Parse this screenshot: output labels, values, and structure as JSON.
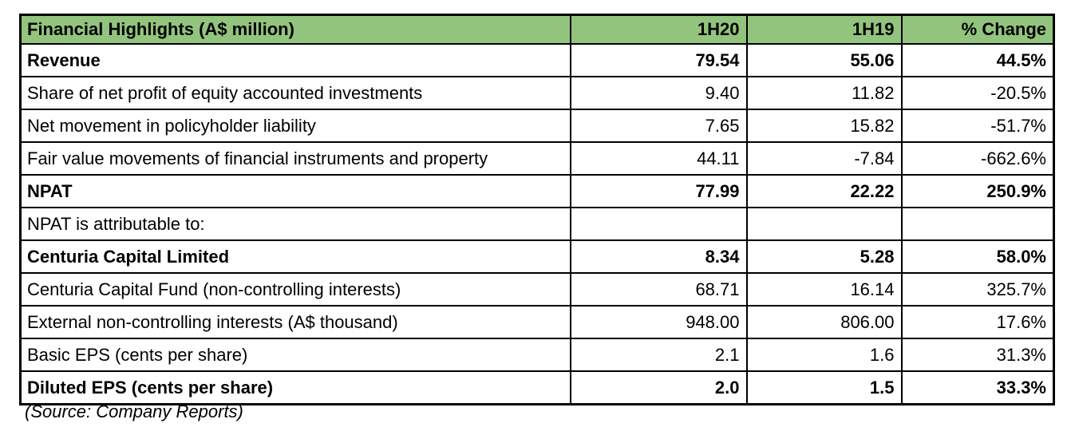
{
  "chart_data": {
    "type": "table",
    "title": "Financial Highlights (A$ million)",
    "columns": [
      "Financial Highlights (A$ million)",
      "1H20",
      "1H19",
      "% Change"
    ],
    "rows": [
      {
        "label": "Revenue",
        "values": [
          "79.54",
          "55.06",
          "44.5%"
        ],
        "bold": true
      },
      {
        "label": "Share of net profit of equity accounted investments",
        "values": [
          "9.40",
          "11.82",
          "-20.5%"
        ],
        "bold": false
      },
      {
        "label": "Net movement in policyholder liability",
        "values": [
          "7.65",
          "15.82",
          "-51.7%"
        ],
        "bold": false
      },
      {
        "label": "Fair value movements of financial instruments and property",
        "values": [
          "44.11",
          "-7.84",
          "-662.6%"
        ],
        "bold": false
      },
      {
        "label": "NPAT",
        "values": [
          "77.99",
          "22.22",
          "250.9%"
        ],
        "bold": true
      },
      {
        "label": "NPAT is attributable to:",
        "values": [
          "",
          "",
          ""
        ],
        "bold": false
      },
      {
        "label": "Centuria Capital Limited",
        "values": [
          "8.34",
          "5.28",
          "58.0%"
        ],
        "bold": true
      },
      {
        "label": "Centuria Capital Fund (non-controlling interests)",
        "values": [
          "68.71",
          "16.14",
          "325.7%"
        ],
        "bold": false
      },
      {
        "label": "External non-controlling interests (A$ thousand)",
        "values": [
          "948.00",
          "806.00",
          "17.6%"
        ],
        "bold": false
      },
      {
        "label": "Basic EPS (cents per share)",
        "values": [
          "2.1",
          "1.6",
          "31.3%"
        ],
        "bold": false
      },
      {
        "label": "Diluted EPS (cents per share)",
        "values": [
          "2.0",
          "1.5",
          "33.3%"
        ],
        "bold": true
      }
    ],
    "source_note": "(Source: Company Reports)",
    "layout_hints": {
      "header_position": "top",
      "grid": true,
      "label_column_align": "left",
      "value_columns_align": "right"
    },
    "colors": {
      "header_bg": "#93c47d",
      "border": "#000000",
      "text": "#000000",
      "background": "#ffffff"
    }
  }
}
